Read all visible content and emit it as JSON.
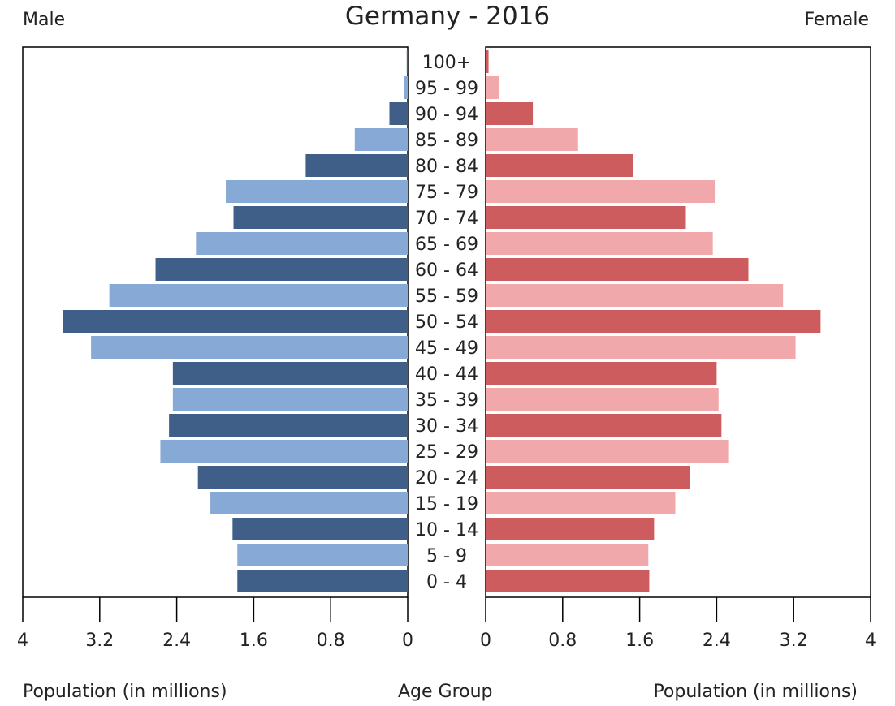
{
  "chart_data": {
    "type": "bar",
    "title": "Germany - 2016",
    "left_label": "Male",
    "right_label": "Female",
    "xlabel_left": "Population (in millions)",
    "xlabel_center": "Age Group",
    "xlabel_right": "Population (in millions)",
    "xlim": [
      0,
      4
    ],
    "ticks": [
      "4",
      "3.2",
      "2.4",
      "1.6",
      "0.8",
      "0",
      "0",
      "0.8",
      "1.6",
      "2.4",
      "3.2",
      "4"
    ],
    "tick_values": [
      4,
      3.2,
      2.4,
      1.6,
      0.8,
      0,
      0,
      0.8,
      1.6,
      2.4,
      3.2,
      4
    ],
    "categories": [
      "100+",
      "95 - 99",
      "90 - 94",
      "85 - 89",
      "80 - 84",
      "75 - 79",
      "70 - 74",
      "65 - 69",
      "60 - 64",
      "55 - 59",
      "50 - 54",
      "45 - 49",
      "40 - 44",
      "35 - 39",
      "30 - 34",
      "25 - 29",
      "20 - 24",
      "15 - 19",
      "10 - 14",
      "5 - 9",
      "0 - 4"
    ],
    "series": [
      {
        "name": "Male",
        "values": [
          0.01,
          0.04,
          0.19,
          0.55,
          1.06,
          1.89,
          1.81,
          2.2,
          2.62,
          3.1,
          3.58,
          3.29,
          2.44,
          2.44,
          2.48,
          2.57,
          2.18,
          2.05,
          1.82,
          1.77,
          1.77
        ]
      },
      {
        "name": "Female",
        "values": [
          0.03,
          0.14,
          0.49,
          0.96,
          1.53,
          2.38,
          2.08,
          2.36,
          2.73,
          3.09,
          3.48,
          3.22,
          2.4,
          2.42,
          2.45,
          2.52,
          2.12,
          1.97,
          1.75,
          1.69,
          1.7
        ]
      }
    ],
    "colors": {
      "male_dark": "#3f5f89",
      "male_light": "#87a9d5",
      "female_dark": "#cd5c5f",
      "female_light": "#f1a8aa",
      "axis": "#000000"
    },
    "grid": false
  }
}
